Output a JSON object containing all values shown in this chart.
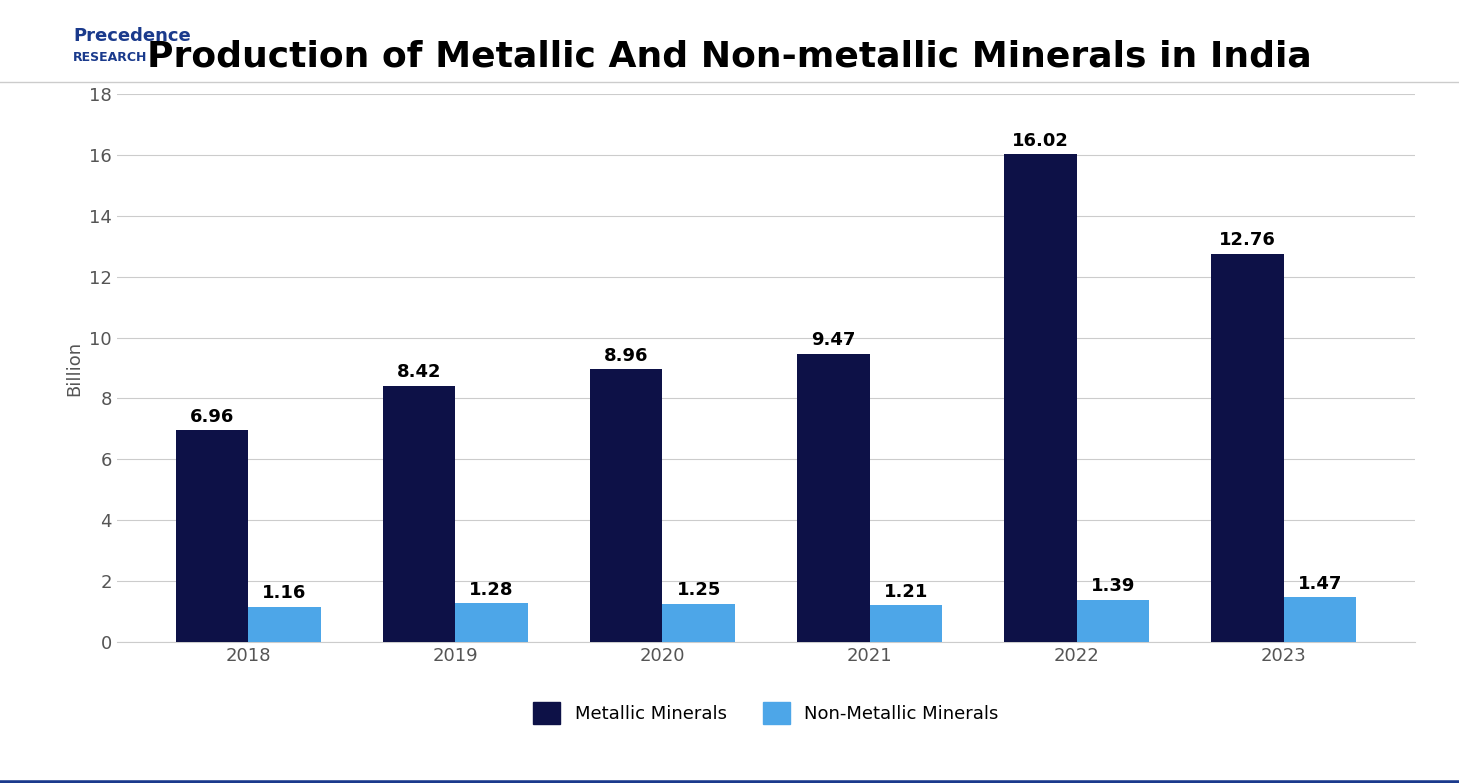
{
  "title": "Production of Metallic And Non-metallic Minerals in India",
  "years": [
    2018,
    2019,
    2020,
    2021,
    2022,
    2023
  ],
  "metallic": [
    6.96,
    8.42,
    8.96,
    9.47,
    16.02,
    12.76
  ],
  "non_metallic": [
    1.16,
    1.28,
    1.25,
    1.21,
    1.39,
    1.47
  ],
  "metallic_color": "#0d1147",
  "non_metallic_color": "#4da6e8",
  "ylabel": "Billion",
  "ylim": [
    0,
    18
  ],
  "yticks": [
    0,
    2,
    4,
    6,
    8,
    10,
    12,
    14,
    16,
    18
  ],
  "bar_width": 0.35,
  "title_fontsize": 26,
  "label_fontsize": 13,
  "tick_fontsize": 13,
  "legend_fontsize": 13,
  "annotation_fontsize": 13,
  "background_color": "#ffffff",
  "grid_color": "#cccccc",
  "logo_text_top": "Precedence",
  "logo_text_bottom": "RESEARCH",
  "border_color": "#1a3a8c"
}
